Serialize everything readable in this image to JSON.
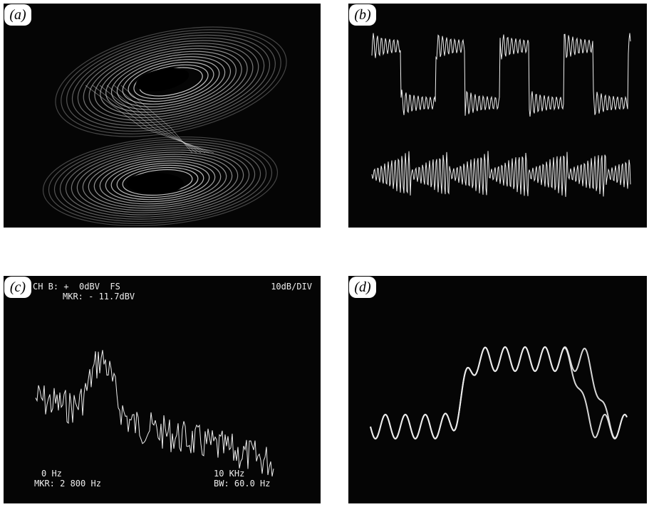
{
  "panels": [
    {
      "label": "(a)"
    },
    {
      "label": "(b)"
    },
    {
      "label": "(c)",
      "texts": {
        "channel": "CH B: +  0dBV  FS",
        "scale": "10dB/DIV",
        "marker_level": "MKR: - 11.7dBV",
        "start": "0 Hz",
        "stop": "10 KHz",
        "marker_freq": "MKR: 2 800 Hz",
        "bandwidth": "BW: 60.0 Hz"
      }
    },
    {
      "label": "(d)"
    }
  ]
}
